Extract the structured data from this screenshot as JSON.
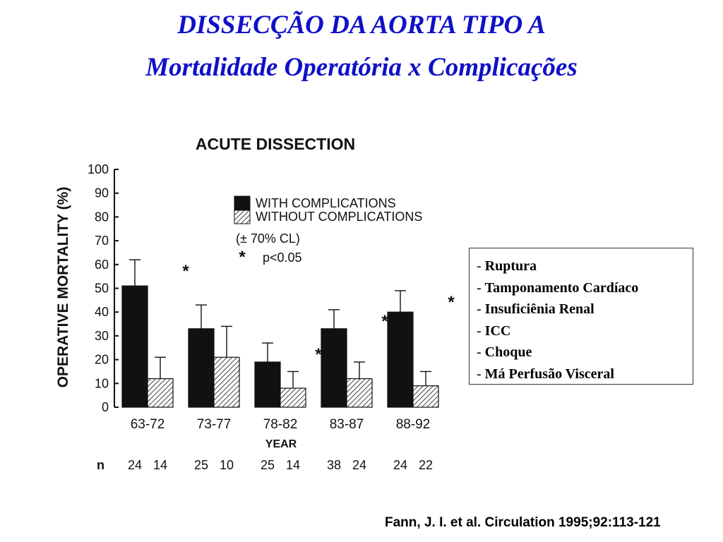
{
  "header": {
    "title": "DISSECÇÃO DA AORTA TIPO A",
    "subtitle": "Mortalidade Operatória x Complicações"
  },
  "chart_data": {
    "type": "bar",
    "title": "ACUTE DISSECTION",
    "xlabel": "YEAR",
    "ylabel": "OPERATIVE MORTALITY (%)",
    "ylim": [
      0,
      100
    ],
    "yticks": [
      0,
      10,
      20,
      30,
      40,
      50,
      60,
      70,
      80,
      90,
      100
    ],
    "grid": false,
    "categories": [
      "63-72",
      "73-77",
      "78-82",
      "83-87",
      "88-92"
    ],
    "series": [
      {
        "name": "WITH COMPLICATIONS",
        "fill": "solid",
        "color": "#111111",
        "values": [
          51,
          33,
          19,
          33,
          40
        ],
        "error_upper": [
          62,
          43,
          27,
          41,
          49
        ],
        "n": [
          "24",
          "25",
          "25",
          "38",
          "24"
        ]
      },
      {
        "name": "WITHOUT COMPLICATIONS",
        "fill": "hatched",
        "color": "#111111",
        "values": [
          12,
          21,
          8,
          12,
          9
        ],
        "error_upper": [
          21,
          34,
          15,
          19,
          15
        ],
        "n": [
          "14",
          "10",
          "14",
          "24",
          "22"
        ]
      }
    ],
    "significance": [
      "*",
      "",
      "*",
      "*",
      "*"
    ],
    "legend": {
      "position": "top-right",
      "ci_note": "(± 70% CL)",
      "sig_symbol": "*",
      "sig_note": "p<0.05"
    },
    "n_label": "n"
  },
  "complications": [
    "Ruptura",
    "Tamponamento Cardíaco",
    "Insuficiênia Renal",
    "ICC",
    "Choque",
    "Má Perfusão Visceral"
  ],
  "citation": "Fann, J. I. et al. Circulation 1995;92:113-121",
  "colors": {
    "title": "#0f10c8",
    "ink": "#111111"
  }
}
